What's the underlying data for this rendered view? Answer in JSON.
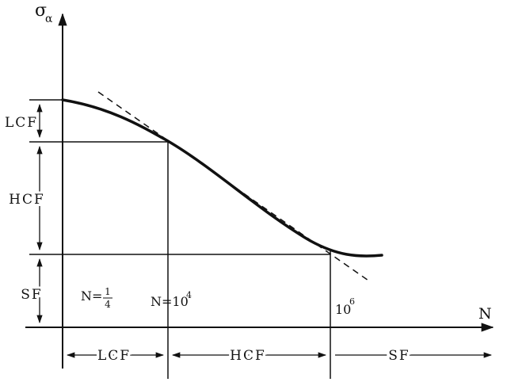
{
  "axes": {
    "y_symbol": "σ",
    "y_subscript": "α",
    "x_symbol": "N"
  },
  "regions": {
    "lcf": "LCF",
    "hcf": "HCF",
    "sf": "SF"
  },
  "cycle_labels": {
    "quarter_prefix": "N=",
    "quarter_num": "1",
    "quarter_den": "4",
    "n1e4_prefix": "N=10",
    "n1e4_exp": "4",
    "n1e6_base": "10",
    "n1e6_exp": "6"
  },
  "colors": {
    "line": "#111111",
    "background": "#ffffff"
  }
}
